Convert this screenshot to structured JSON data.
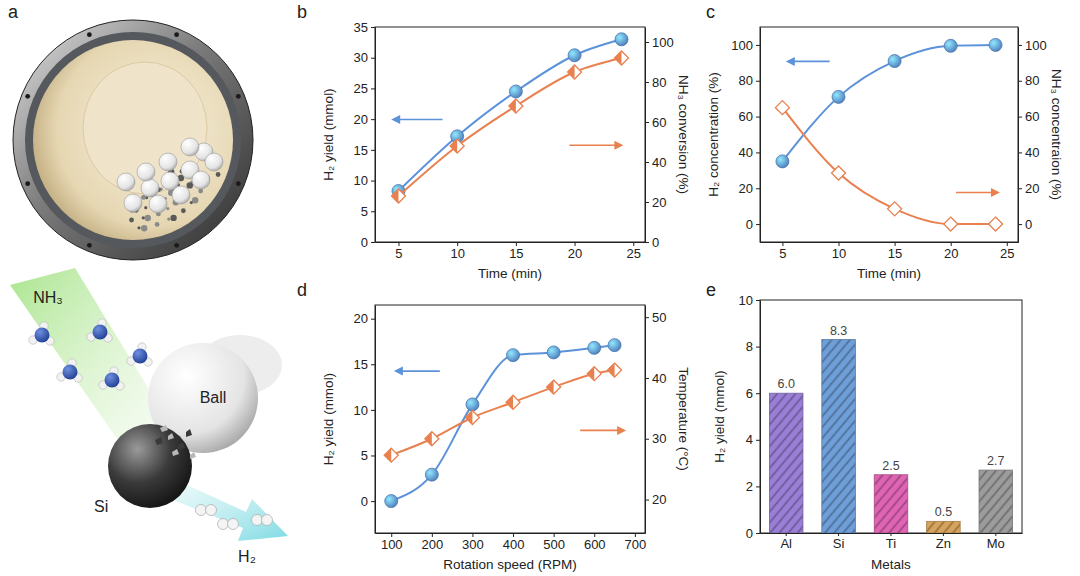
{
  "diagram": {
    "label": "a",
    "nh3": "NH₃",
    "ball": "Ball",
    "si": "Si",
    "h2": "H₂"
  },
  "chart_data": [
    {
      "label": "b",
      "type": "line",
      "xlabel": "Time (min)",
      "ylabel": "H₂ yield (mmol)",
      "y2label": "NH₃ conversion (%)",
      "x": [
        5,
        10,
        15,
        20,
        24
      ],
      "xlim": [
        3,
        26
      ],
      "xticks": [
        5,
        10,
        15,
        20,
        25
      ],
      "ylim": [
        0,
        35
      ],
      "yticks": [
        0,
        5,
        10,
        15,
        20,
        25,
        30,
        35
      ],
      "y2lim": [
        0,
        107.5
      ],
      "y2ticks": [
        0,
        20,
        40,
        60,
        80,
        100
      ],
      "series": [
        {
          "color": "#5b92da",
          "marker": "circle",
          "line_style": "solid",
          "values": [
            8.3,
            17.2,
            24.5,
            30.4,
            33.0
          ]
        },
        {
          "color": "#e9804f",
          "marker": "diamond-half",
          "line_style": "solid",
          "axis": "y2",
          "values": [
            23,
            48,
            68,
            85,
            92
          ]
        }
      ]
    },
    {
      "label": "c",
      "type": "line",
      "xlabel": "Time (min)",
      "ylabel": "H₂ concentration (%)",
      "y2label": "NH₃ concentraion (%)",
      "x": [
        5,
        10,
        15,
        20,
        24
      ],
      "xlim": [
        3,
        26
      ],
      "xticks": [
        5,
        10,
        15,
        20,
        25
      ],
      "ylim": [
        -10,
        110
      ],
      "yticks": [
        0,
        20,
        40,
        60,
        80,
        100
      ],
      "y2lim": [
        -10,
        110
      ],
      "y2ticks": [
        0,
        20,
        40,
        60,
        80,
        100
      ],
      "series": [
        {
          "color": "#5b92da",
          "marker": "circle",
          "line_style": "solid",
          "values": [
            35,
            71,
            91,
            99.5,
            100
          ]
        },
        {
          "color": "#e9804f",
          "marker": "diamond-open",
          "line_style": "solid",
          "axis": "y2",
          "values": [
            65,
            28.5,
            8.5,
            0,
            0
          ]
        }
      ]
    },
    {
      "label": "d",
      "type": "line",
      "xlabel": "Rotation speed (RPM)",
      "ylabel": "H₂ yield (mmol)",
      "y2label": "Temperature (°C)",
      "x": [
        100,
        200,
        300,
        400,
        500,
        600,
        650
      ],
      "xlim": [
        60,
        725
      ],
      "xticks": [
        100,
        200,
        300,
        400,
        500,
        600,
        700
      ],
      "ylim": [
        -3.5,
        21.5
      ],
      "yticks": [
        0,
        5,
        10,
        15,
        20
      ],
      "y2lim": [
        14.5,
        52
      ],
      "y2ticks": [
        20,
        30,
        40,
        50
      ],
      "series": [
        {
          "color": "#5b92da",
          "marker": "circle",
          "line_style": "solid",
          "values": [
            0,
            2.9,
            10.6,
            16.0,
            16.3,
            16.8,
            17.1
          ]
        },
        {
          "color": "#e9804f",
          "marker": "diamond-half",
          "line_style": "solid",
          "axis": "y2",
          "values": [
            27.3,
            30.0,
            33.5,
            36.0,
            38.5,
            40.7,
            41.3
          ]
        }
      ]
    },
    {
      "label": "e",
      "type": "bar",
      "xlabel": "Metals",
      "ylabel": "H₂ yield (mmol)",
      "categories": [
        "Al",
        "Si",
        "Ti",
        "Zn",
        "Mo"
      ],
      "values": [
        6.0,
        8.3,
        2.5,
        0.5,
        2.7
      ],
      "value_labels": [
        "6.0",
        "8.3",
        "2.5",
        "0.5",
        "2.7"
      ],
      "colors": [
        "#9a7fd6",
        "#6f9fd8",
        "#e064b4",
        "#d8a45c",
        "#9c9c9c"
      ],
      "data_labels": true,
      "ylim": [
        0,
        10
      ],
      "yticks": [
        0,
        2,
        4,
        6,
        8,
        10
      ]
    }
  ]
}
